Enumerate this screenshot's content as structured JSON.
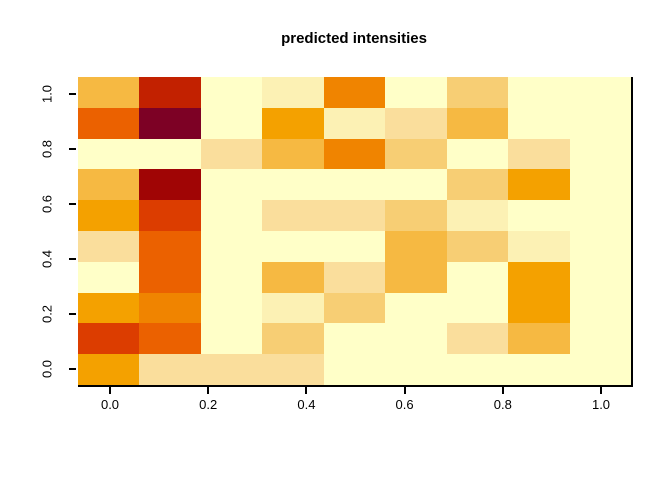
{
  "title": "predicted intensities",
  "chart_data": {
    "type": "heatmap",
    "title": "predicted intensities",
    "xlabel": "",
    "ylabel": "",
    "x_tick_labels": [
      "0.0",
      "0.2",
      "0.4",
      "0.6",
      "0.8",
      "1.0"
    ],
    "y_tick_labels": [
      "0.0",
      "0.2",
      "0.4",
      "0.6",
      "0.8",
      "1.0"
    ],
    "x_tick_values": [
      0.0,
      0.2,
      0.4,
      0.6,
      0.8,
      1.0
    ],
    "y_tick_values": [
      0.0,
      0.2,
      0.4,
      0.6,
      0.8,
      1.0
    ],
    "x_range": [
      -0.0625,
      1.0625
    ],
    "y_range": [
      -0.0556,
      1.0556
    ],
    "n_cols": 9,
    "n_rows": 10,
    "x_centers": [
      0.0,
      0.125,
      0.25,
      0.375,
      0.5,
      0.625,
      0.75,
      0.875,
      1.0
    ],
    "y_centers_top_to_bottom": [
      1.0,
      0.889,
      0.778,
      0.667,
      0.556,
      0.444,
      0.333,
      0.222,
      0.111,
      0.0
    ],
    "palette": [
      "#FFFFC8",
      "#FCF1B4",
      "#FADE9C",
      "#F7CE74",
      "#F6B942",
      "#F4A100",
      "#F08400",
      "#EB6100",
      "#DC3D00",
      "#C22100",
      "#A00505",
      "#7D0125"
    ],
    "palette_name": "YlOrRd reversed (pale yellow = low, dark maroon = high)",
    "value_scale": "palette level index per cell, 1 = lowest intensity, 12 = highest",
    "rows_top_to_bottom": [
      {
        "y": 1.0,
        "levels": [
          5,
          10,
          1,
          2,
          7,
          1,
          4,
          1,
          1
        ]
      },
      {
        "y": 0.889,
        "levels": [
          8,
          12,
          1,
          6,
          2,
          3,
          5,
          1,
          1
        ]
      },
      {
        "y": 0.778,
        "levels": [
          1,
          1,
          3,
          5,
          7,
          4,
          1,
          3,
          1
        ]
      },
      {
        "y": 0.667,
        "levels": [
          5,
          11,
          1,
          1,
          1,
          1,
          4,
          6,
          1
        ]
      },
      {
        "y": 0.556,
        "levels": [
          6,
          9,
          1,
          3,
          3,
          4,
          2,
          1,
          1
        ]
      },
      {
        "y": 0.444,
        "levels": [
          3,
          8,
          1,
          1,
          1,
          5,
          4,
          2,
          1
        ]
      },
      {
        "y": 0.333,
        "levels": [
          1,
          8,
          1,
          5,
          3,
          5,
          1,
          6,
          1
        ]
      },
      {
        "y": 0.222,
        "levels": [
          6,
          7,
          1,
          2,
          4,
          1,
          1,
          6,
          1
        ]
      },
      {
        "y": 0.111,
        "levels": [
          9,
          8,
          1,
          4,
          1,
          1,
          3,
          5,
          1
        ]
      },
      {
        "y": 0.0,
        "levels": [
          6,
          3,
          3,
          3,
          1,
          1,
          1,
          1,
          1
        ]
      }
    ],
    "grid_lines": false,
    "legend": "none",
    "border": {
      "right": true,
      "bottom_axis_line": true,
      "top": false,
      "left": false
    }
  }
}
